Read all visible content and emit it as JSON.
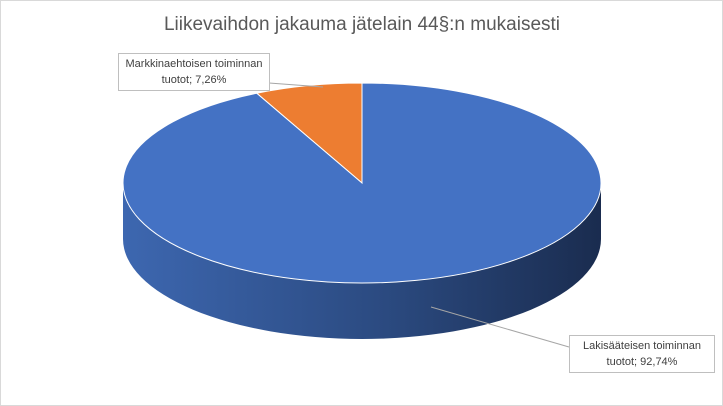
{
  "chart_data": {
    "type": "pie",
    "title": "Liikevaihdon jakauma jätelain 44§:n mukaisesti",
    "values": [
      7.26,
      92.74
    ],
    "value_labels": [
      "Markkinaehtoisen toiminnan tuotot; 7,26%",
      "Lakisääteisen toiminnan tuotot; 92,74%"
    ],
    "colors": [
      "#ed7d31",
      "#4472c4"
    ]
  }
}
